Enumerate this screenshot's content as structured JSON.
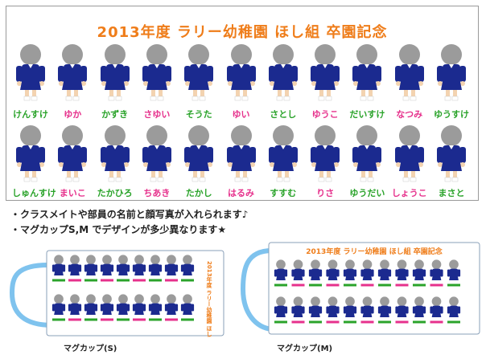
{
  "banner": {
    "title": "2013年度 ラリー幼稚園 ほし組 卒園記念",
    "row1": [
      "けんすけ",
      "ゆか",
      "かずき",
      "さゆい",
      "そうた",
      "ゆい",
      "さとし",
      "ゆうこ",
      "だいすけ",
      "なつみ",
      "ゆうすけ"
    ],
    "row1_colors": [
      "green",
      "pink",
      "green",
      "pink",
      "green",
      "pink",
      "green",
      "pink",
      "green",
      "pink",
      "green"
    ],
    "row2": [
      "しゅんすけ",
      "まいこ",
      "たかひろ",
      "ちあき",
      "たかし",
      "はるみ",
      "すすむ",
      "りさ",
      "ゆうだい",
      "しょうこ",
      "まさと"
    ],
    "row2_colors": [
      "green",
      "pink",
      "green",
      "pink",
      "green",
      "pink",
      "green",
      "pink",
      "green",
      "pink",
      "green"
    ]
  },
  "notes": {
    "line1": "・クラスメイトや部員の名前と顔写真が入れられます♪",
    "line2": "・マグカップS,M でデザインが多少異なります★"
  },
  "mugs": {
    "small_caption": "マグカップ(S)",
    "medium_caption": "マグカップ(M)",
    "small_title": "2013年度 ラリー幼稚園 ほし組 卒園記念",
    "medium_title": "2013年度 ラリー幼稚園 ほし組 卒園記念"
  },
  "colors": {
    "title_orange": "#ef7d1a",
    "uniform_navy": "#1b2a8f",
    "name_green": "#2aa32a",
    "name_pink": "#e6318c",
    "face_gray": "#9b9b9b",
    "mug_blue": "#7fc3ee"
  }
}
